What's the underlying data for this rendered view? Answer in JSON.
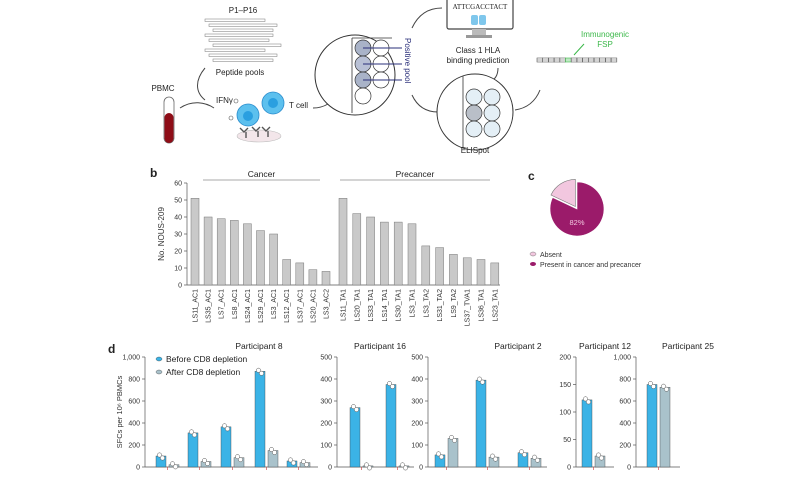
{
  "colors": {
    "bar_grey": "#c9c9c9",
    "before_blue": "#3bb3e6",
    "after_grey": "#a9c2cb",
    "present_magenta": "#9b1b6a",
    "absent_pink": "#f2c7df",
    "immunogenic_green": "#3cb84a",
    "blood_red": "#8e0d17",
    "cell_blue": "#5cc0ee",
    "pool_line": "#2a2f7a"
  },
  "panel_labels": {
    "b": "b",
    "c": "c",
    "d": "d"
  },
  "diagram": {
    "peptide_range": "P1–P16",
    "peptide_pools": "Peptide pools",
    "pbmc": "PBMC",
    "ifng": "IFNγ",
    "t_cell": "T cell",
    "positive_pool": "Positive pool",
    "sequence": "ATTCGACCTACT",
    "hla_line1": "Class 1 HLA",
    "hla_line2": "binding prediction",
    "elispot": "ELISpot",
    "immunogenic_line1": "Immunogenic",
    "immunogenic_line2": "FSP",
    "icons": [
      "blood-tube-icon",
      "t-cell-icon",
      "elispot-plate-icon",
      "computer-monitor-icon",
      "peptide-chain-icon"
    ]
  },
  "chart_data": [
    {
      "panel": "b",
      "type": "bar",
      "ylabel": "No. NOUS-209",
      "ylim": [
        0,
        60
      ],
      "yticks": [
        0,
        10,
        20,
        30,
        40,
        50,
        60
      ],
      "grid": false,
      "groups": [
        {
          "name": "Cancer",
          "categories": [
            "LS11_AC1",
            "LS35_AC1",
            "LS7_AC1",
            "LS8_AC1",
            "LS24_AC1",
            "LS29_AC1",
            "LS3_AC1",
            "LS12_AC1",
            "LS37_AC1",
            "LS20_AC1",
            "LS3_AC2"
          ],
          "values": [
            51,
            40,
            39,
            38,
            36,
            32,
            30,
            15,
            13,
            9,
            8
          ]
        },
        {
          "name": "Precancer",
          "categories": [
            "LS11_TA1",
            "LS20_TA1",
            "LS33_TA1",
            "LS14_TA1",
            "LS30_TA1",
            "LS3_TA1",
            "LS3_TA2",
            "LS31_TA2",
            "LS9_TA2",
            "LS37_TVA1",
            "LS36_TA1",
            "LS23_TA1"
          ],
          "values": [
            51,
            42,
            40,
            37,
            37,
            36,
            23,
            22,
            18,
            16,
            15,
            13
          ]
        }
      ]
    },
    {
      "panel": "c",
      "type": "pie",
      "slices": [
        {
          "name": "Absent",
          "value": 18
        },
        {
          "name": "Present in cancer and precancer",
          "value": 82,
          "label": "82%"
        }
      ],
      "legend_placement": "bottom"
    },
    {
      "panel": "d",
      "type": "bar",
      "ylabel": "SFCs per 10⁶ PBMCs",
      "legend": [
        "Before CD8 depletion",
        "After CD8 depletion"
      ],
      "legend_placement": "top-left",
      "subplots": [
        {
          "title": "Participant 8",
          "ylim": [
            0,
            1000
          ],
          "yticks": [
            "0",
            "200",
            "400",
            "600",
            "800",
            "1,000"
          ],
          "ytick_values": [
            0,
            200,
            400,
            600,
            800,
            1000
          ],
          "before": [
            100,
            310,
            365,
            870,
            55
          ],
          "after": [
            20,
            50,
            85,
            150,
            40
          ]
        },
        {
          "title": "Participant 16",
          "ylim": [
            0,
            500
          ],
          "yticks": [
            "0",
            "100",
            "200",
            "300",
            "400",
            "500"
          ],
          "ytick_values": [
            0,
            100,
            200,
            300,
            400,
            500
          ],
          "before": [
            270,
            375
          ],
          "after": [
            5,
            5
          ]
        },
        {
          "title": "Participant 2",
          "ylim": [
            0,
            500
          ],
          "yticks": [
            "0",
            "100",
            "200",
            "300",
            "400",
            "500"
          ],
          "ytick_values": [
            0,
            100,
            200,
            300,
            400,
            500
          ],
          "before": [
            55,
            395,
            65
          ],
          "after": [
            130,
            45,
            40
          ]
        },
        {
          "title": "Participant 12",
          "ylim": [
            0,
            200
          ],
          "yticks": [
            "0",
            "50",
            "100",
            "150",
            "200"
          ],
          "ytick_values": [
            0,
            50,
            100,
            150,
            200
          ],
          "before": [
            122
          ],
          "after": [
            20
          ]
        },
        {
          "title": "Participant 25",
          "ylim": [
            0,
            1000
          ],
          "yticks": [
            "0",
            "200",
            "400",
            "600",
            "800",
            "1,000"
          ],
          "ytick_values": [
            0,
            200,
            400,
            600,
            800,
            1000
          ],
          "before": [
            750
          ],
          "after": [
            725
          ]
        }
      ]
    }
  ]
}
